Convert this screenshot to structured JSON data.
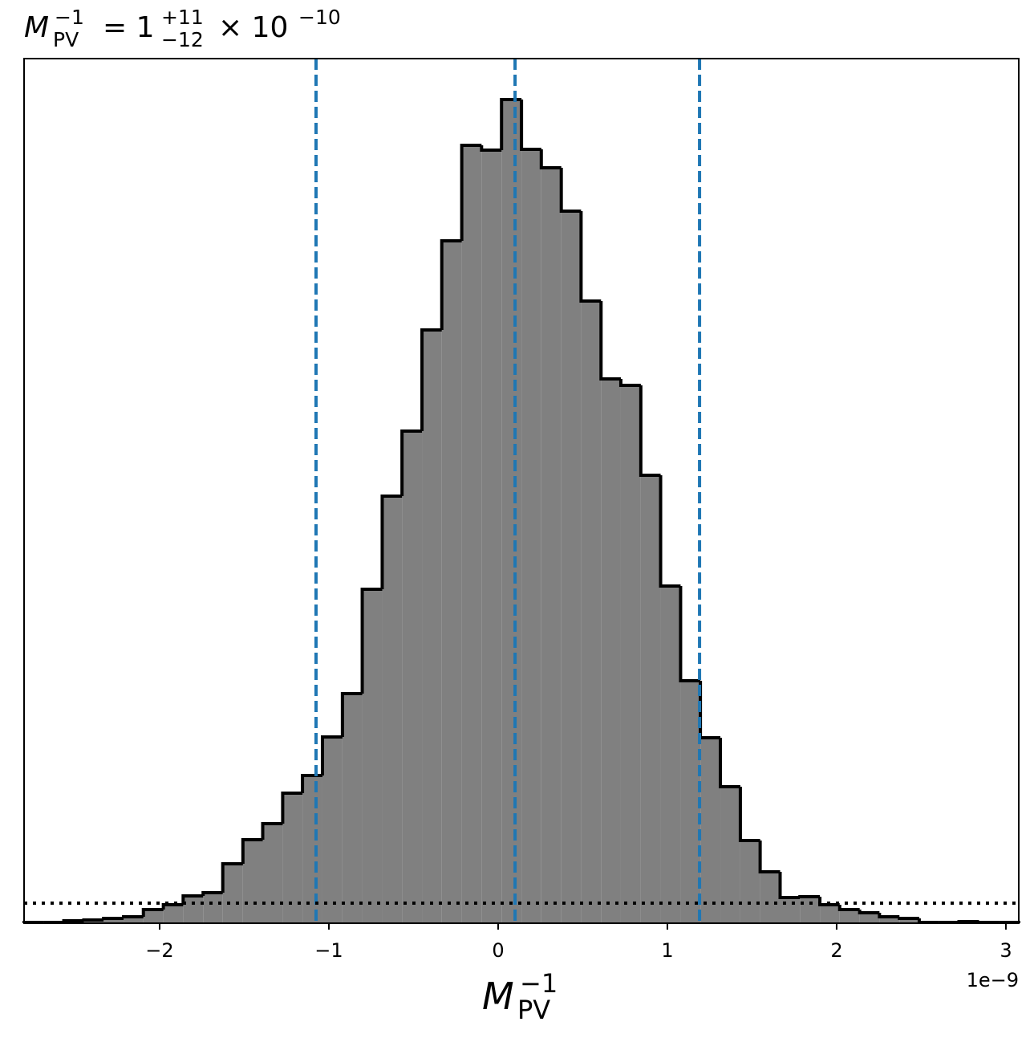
{
  "chart_data": {
    "type": "histogram",
    "title": {
      "symbol": "M",
      "sub": "PV",
      "sup": "−1",
      "equals": "= 1",
      "upper": "+11",
      "lower": "−12",
      "times": "× 10",
      "exponent": "−10"
    },
    "x_label": {
      "symbol": "M",
      "sub": "PV",
      "sup": "−1"
    },
    "x_offset_label": "1e−9",
    "bins": [
      -2.801,
      -2.683,
      -2.566,
      -2.448,
      -2.331,
      -2.213,
      -2.096,
      -1.978,
      -1.861,
      -1.743,
      -1.627,
      -1.508,
      -1.391,
      -1.273,
      -1.156,
      -1.038,
      -0.92,
      -0.803,
      -0.685,
      -0.568,
      -0.45,
      -0.333,
      -0.215,
      -0.098,
      0.02,
      0.138,
      0.255,
      0.373,
      0.49,
      0.608,
      0.725,
      0.843,
      0.96,
      1.078,
      1.195,
      1.313,
      1.431,
      1.548,
      1.666,
      1.783,
      1.901,
      2.018,
      2.136,
      2.253,
      2.371,
      2.488,
      2.606,
      2.723,
      2.841,
      2.958,
      3.076
    ],
    "values": [
      1,
      1,
      3,
      4,
      6,
      8,
      17,
      23,
      34,
      38,
      74,
      104,
      124,
      162,
      184,
      232,
      286,
      416,
      532,
      613,
      739,
      850,
      969,
      963,
      1026,
      964,
      941,
      887,
      775,
      678,
      670,
      558,
      420,
      302,
      231,
      170,
      103,
      64,
      32,
      33,
      23,
      17,
      13,
      8,
      6,
      1,
      1,
      2,
      1,
      1
    ],
    "color": "#808080",
    "edge_color": "#000000",
    "xlim": [
      -2.801,
      3.076
    ],
    "ylim": [
      0,
      1077
    ],
    "xticks": [
      {
        "value": -2,
        "label": "−2"
      },
      {
        "value": -1,
        "label": "−1"
      },
      0,
      1,
      2,
      3
    ],
    "vlines": {
      "values": [
        -1.076,
        0.1,
        1.19
      ],
      "color": "#1f77b4"
    },
    "hline": {
      "value": 25,
      "color": "#000000"
    }
  }
}
